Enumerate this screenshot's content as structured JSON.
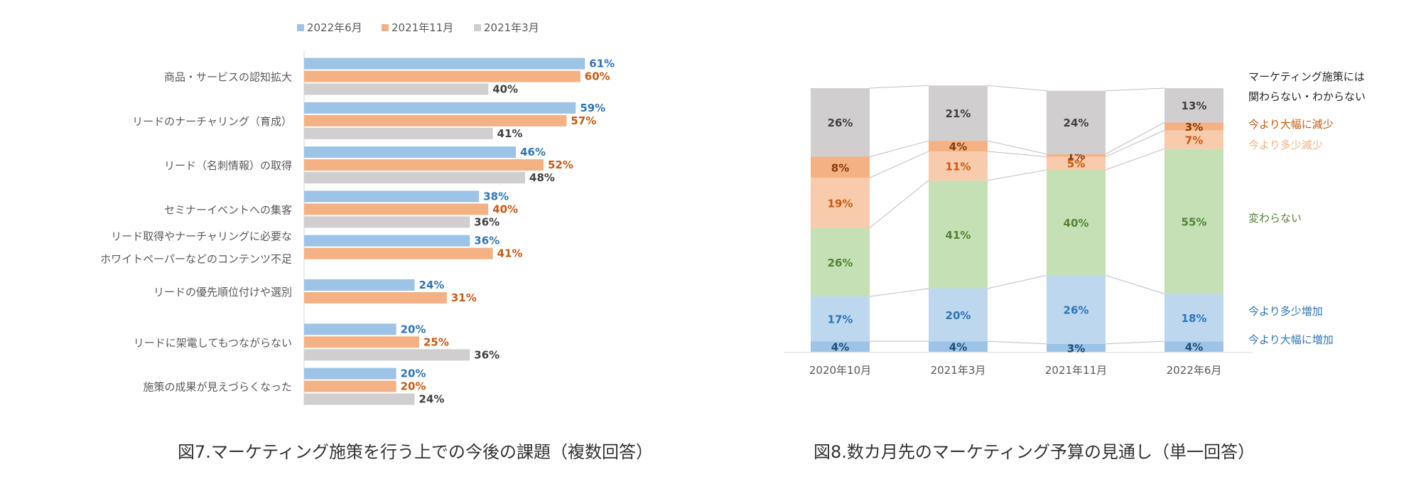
{
  "colors": {
    "c2022_6": "#9dc3e6",
    "c2021_11": "#f4b183",
    "c2021_3": "#d0cece",
    "lbl2022_6": "#2e75b6",
    "lbl2021_11": "#c55a11",
    "lbl2021_3": "#404040",
    "dec_large": "#f4b183",
    "dec_small": "#f8cbad",
    "same": "#c5e0b4",
    "inc_small": "#bdd7ee",
    "inc_large": "#9dc3e6",
    "na": "#d0cece"
  },
  "captions": {
    "fig7": "図7.マーケティング施策を行う上での今後の課題（複数回答）",
    "fig8": "図8.数カ月先のマーケティング予算の見通し（単一回答）"
  },
  "chart_data": [
    {
      "type": "bar",
      "orientation": "horizontal",
      "title": "",
      "categories": [
        "商品・サービスの認知拡大",
        "リードのナーチャリング（育成）",
        "リード（名刺情報）の取得",
        "セミナーイベントへの集客",
        "リード取得やナーチャリングに必要な\nホワイトペーパーなどのコンテンツ不足",
        "リードの優先順位付けや選別",
        "リードに架電してもつながらない",
        "施策の成果が見えづらくなった"
      ],
      "series": [
        {
          "name": "2022年6月",
          "values": [
            61,
            59,
            46,
            38,
            36,
            24,
            20,
            20
          ]
        },
        {
          "name": "2021年11月",
          "values": [
            60,
            57,
            52,
            40,
            41,
            31,
            25,
            20
          ]
        },
        {
          "name": "2021年3月",
          "values": [
            40,
            41,
            48,
            36,
            null,
            null,
            36,
            24
          ]
        }
      ],
      "unit": "%",
      "legend": "top",
      "grid": false
    },
    {
      "type": "bar",
      "stacked": true,
      "percent": true,
      "title": "",
      "categories": [
        "2020年10月",
        "2021年3月",
        "2021年11月",
        "2022年6月"
      ],
      "series": [
        {
          "name": "今より大幅に増加",
          "values": [
            4,
            4,
            3,
            4
          ]
        },
        {
          "name": "今より多少増加",
          "values": [
            17,
            20,
            26,
            18
          ]
        },
        {
          "name": "変わらない",
          "values": [
            26,
            41,
            40,
            55
          ]
        },
        {
          "name": "今より多少減少",
          "values": [
            19,
            11,
            5,
            7
          ]
        },
        {
          "name": "今より大幅に減少",
          "values": [
            8,
            4,
            1,
            3
          ]
        },
        {
          "name": "マーケティング施策には\n関わらない・わからない",
          "values": [
            26,
            21,
            24,
            13
          ]
        }
      ],
      "unit": "%",
      "legend": "right",
      "grid": false
    }
  ]
}
